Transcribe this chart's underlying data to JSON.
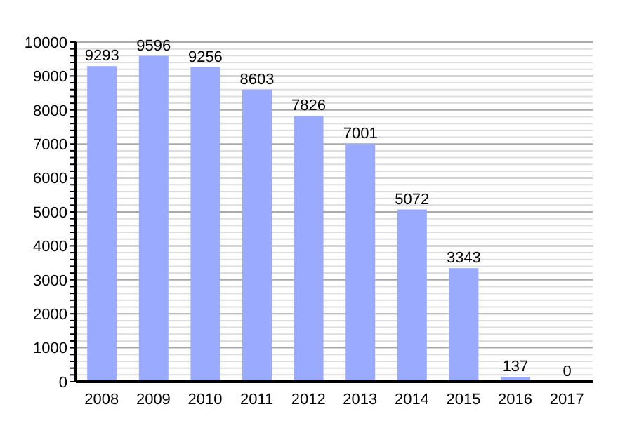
{
  "chart_data": {
    "type": "bar",
    "categories": [
      "2008",
      "2009",
      "2010",
      "2011",
      "2012",
      "2013",
      "2014",
      "2015",
      "2016",
      "2017"
    ],
    "values": [
      9293,
      9596,
      9256,
      8603,
      7826,
      7001,
      5072,
      3343,
      137,
      0
    ],
    "color": "#99aaff",
    "data_labels": true,
    "ylim": [
      0,
      10000
    ],
    "yticks": [
      0,
      {
        "value": 200,
        "label": null
      },
      {
        "value": 400,
        "label": null
      },
      {
        "value": 600,
        "label": null
      },
      {
        "value": 800,
        "label": null
      },
      1000,
      {
        "value": 1200,
        "label": null
      },
      {
        "value": 1400,
        "label": null
      },
      {
        "value": 1600,
        "label": null
      },
      {
        "value": 1800,
        "label": null
      },
      2000,
      {
        "value": 2200,
        "label": null
      },
      {
        "value": 2400,
        "label": null
      },
      {
        "value": 2600,
        "label": null
      },
      {
        "value": 2800,
        "label": null
      },
      3000,
      {
        "value": 3200,
        "label": null
      },
      {
        "value": 3400,
        "label": null
      },
      {
        "value": 3600,
        "label": null
      },
      {
        "value": 3800,
        "label": null
      },
      4000,
      {
        "value": 4200,
        "label": null
      },
      {
        "value": 4400,
        "label": null
      },
      {
        "value": 4600,
        "label": null
      },
      {
        "value": 4800,
        "label": null
      },
      5000,
      {
        "value": 5200,
        "label": null
      },
      {
        "value": 5400,
        "label": null
      },
      {
        "value": 5600,
        "label": null
      },
      {
        "value": 5800,
        "label": null
      },
      6000,
      {
        "value": 6200,
        "label": null
      },
      {
        "value": 6400,
        "label": null
      },
      {
        "value": 6600,
        "label": null
      },
      {
        "value": 6800,
        "label": null
      },
      7000,
      {
        "value": 7200,
        "label": null
      },
      {
        "value": 7400,
        "label": null
      },
      {
        "value": 7600,
        "label": null
      },
      {
        "value": 7800,
        "label": null
      },
      8000,
      {
        "value": 8200,
        "label": null
      },
      {
        "value": 8400,
        "label": null
      },
      {
        "value": 8600,
        "label": null
      },
      {
        "value": 8800,
        "label": null
      },
      9000,
      {
        "value": 9200,
        "label": null
      },
      {
        "value": 9400,
        "label": null
      },
      {
        "value": 9600,
        "label": null
      },
      {
        "value": 9800,
        "label": null
      },
      10000
    ],
    "grid": "y"
  }
}
